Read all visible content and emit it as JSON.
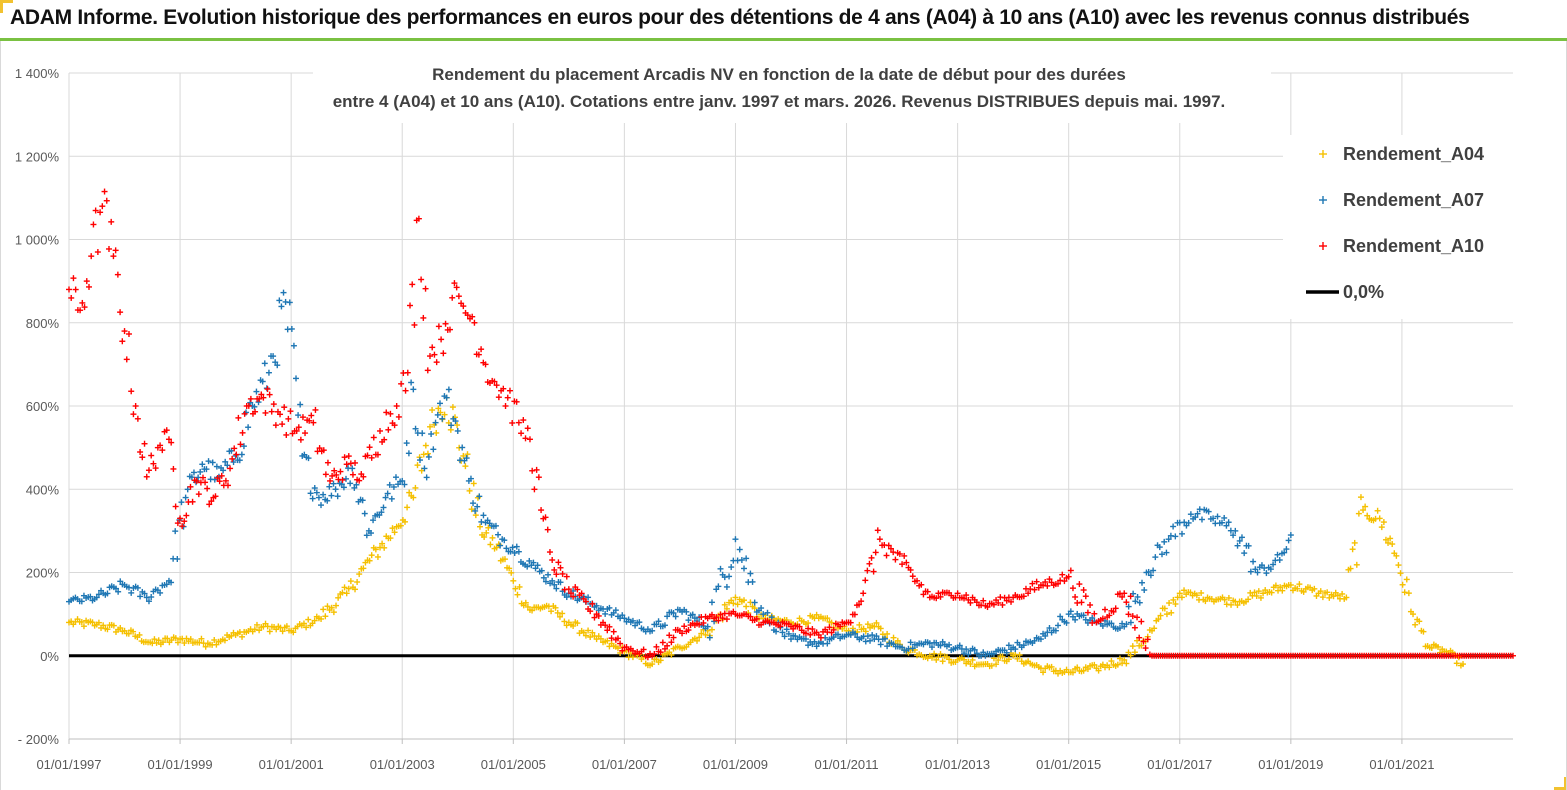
{
  "banner": {
    "title": "ADAM Informe. Evolution historique des performances en euros pour des détentions de 4 ans (A04) à 10 ans (A10) avec les revenus connus distribués"
  },
  "chart_data": {
    "type": "scatter",
    "title_line1": "Rendement du placement Arcadis NV en fonction de la date de début pour des durées",
    "title_line2": "entre 4 (A04) et 10 ans (A10).  Cotations entre janv. 1997 et mars. 2026. Revenus DISTRIBUES depuis mai. 1997.",
    "x_range": [
      1997.0,
      2023.0
    ],
    "ylim": [
      -200,
      1400
    ],
    "y_ticks": [
      -200,
      0,
      200,
      400,
      600,
      800,
      1000,
      1200,
      1400
    ],
    "y_tick_labels": [
      "- 200%",
      "0%",
      "200%",
      "400%",
      "600%",
      "800%",
      "1 000%",
      "1 200%",
      "1 400%"
    ],
    "x_ticks": [
      1997,
      1999,
      2001,
      2003,
      2005,
      2007,
      2009,
      2011,
      2013,
      2015,
      2017,
      2019,
      2021
    ],
    "x_tick_labels": [
      "01/01/1997",
      "01/01/1999",
      "01/01/2001",
      "01/01/2003",
      "01/01/2005",
      "01/01/2007",
      "01/01/2009",
      "01/01/2011",
      "01/01/2013",
      "01/01/2015",
      "01/01/2017",
      "01/01/2019",
      "01/01/2021"
    ],
    "grid": true,
    "legend_position": "top-right",
    "series": [
      {
        "name": "Rendement_A04",
        "color": "#f5c000",
        "marker": "plus",
        "x": [
          1997.0,
          1997.5,
          1998.0,
          1998.5,
          1999.0,
          1999.5,
          2000.0,
          2000.5,
          2001.0,
          2001.5,
          2002.0,
          2002.3,
          2002.6,
          2002.9,
          2003.2,
          2003.5,
          2003.8,
          2004.1,
          2004.4,
          2004.7,
          2005.0,
          2005.3,
          2005.6,
          2006.0,
          2006.5,
          2007.0,
          2007.5,
          2008.0,
          2008.5,
          2009.0,
          2009.5,
          2010.0,
          2010.5,
          2011.0,
          2011.5,
          2012.0,
          2012.5,
          2013.0,
          2013.5,
          2014.0,
          2014.5,
          2015.0,
          2015.5,
          2016.0,
          2016.5,
          2017.0,
          2017.5,
          2018.0,
          2018.5,
          2019.0,
          2019.5,
          2020.0,
          2020.3,
          2020.6,
          2020.9,
          2021.2,
          2021.5,
          2021.8,
          2022.1
        ],
        "y": [
          80,
          75,
          60,
          30,
          40,
          30,
          50,
          70,
          60,
          90,
          150,
          210,
          260,
          310,
          380,
          550,
          620,
          480,
          310,
          260,
          180,
          110,
          120,
          80,
          40,
          10,
          -20,
          20,
          60,
          140,
          90,
          80,
          90,
          60,
          70,
          20,
          0,
          -10,
          -20,
          0,
          -30,
          -40,
          -30,
          -10,
          60,
          150,
          140,
          130,
          150,
          170,
          150,
          140,
          350,
          330,
          240,
          100,
          20,
          10,
          -20
        ]
      },
      {
        "name": "Rendement_A07",
        "color": "#1f77b4",
        "marker": "plus",
        "x": [
          1997.0,
          1997.5,
          1998.0,
          1998.4,
          1998.8,
          1999.1,
          1999.4,
          1999.7,
          2000.0,
          2000.3,
          2000.6,
          2000.9,
          2001.2,
          2001.5,
          2001.8,
          2002.1,
          2002.4,
          2002.7,
          2003.0,
          2003.2,
          2003.4,
          2003.6,
          2003.8,
          2004.0,
          2004.2,
          2004.5,
          2004.8,
          2005.1,
          2005.4,
          2005.7,
          2006.0,
          2006.5,
          2007.0,
          2007.5,
          2008.0,
          2008.5,
          2009.0,
          2009.5,
          2010.0,
          2010.5,
          2011.0,
          2011.5,
          2012.0,
          2012.5,
          2013.0,
          2013.5,
          2014.0,
          2014.5,
          2015.0,
          2015.5,
          2016.0,
          2016.4,
          2016.8,
          2017.2,
          2017.6,
          2018.0,
          2018.4,
          2018.8,
          2019.0
        ],
        "y": [
          130,
          140,
          170,
          140,
          180,
          380,
          460,
          430,
          480,
          600,
          680,
          850,
          480,
          380,
          400,
          450,
          300,
          380,
          420,
          640,
          450,
          560,
          620,
          540,
          420,
          320,
          280,
          250,
          210,
          180,
          150,
          120,
          90,
          60,
          110,
          70,
          280,
          100,
          40,
          30,
          50,
          40,
          20,
          30,
          20,
          0,
          20,
          40,
          100,
          80,
          70,
          200,
          280,
          340,
          330,
          300,
          200,
          230,
          290
        ]
      },
      {
        "name": "Rendement_A10",
        "color": "#ff0000",
        "marker": "plus",
        "x": [
          1997.0,
          1997.2,
          1997.4,
          1997.6,
          1997.8,
          1998.0,
          1998.2,
          1998.4,
          1998.6,
          1998.8,
          1999.0,
          1999.3,
          1999.6,
          1999.9,
          2000.2,
          2000.5,
          2000.8,
          2001.1,
          2001.4,
          2001.7,
          2002.0,
          2002.3,
          2002.6,
          2002.9,
          2003.1,
          2003.3,
          2003.5,
          2003.7,
          2003.9,
          2004.1,
          2004.3,
          2004.5,
          2004.7,
          2004.9,
          2005.1,
          2005.3,
          2005.5,
          2005.7,
          2006.0,
          2006.5,
          2007.0,
          2007.5,
          2008.0,
          2008.5,
          2009.0,
          2009.5,
          2010.0,
          2010.5,
          2011.0,
          2011.3,
          2011.6,
          2012.0,
          2012.5,
          2013.0,
          2013.5,
          2014.0,
          2014.5,
          2015.0,
          2015.5,
          2016.0,
          2016.5,
          2017.0,
          2018.0,
          2019.0,
          2020.0,
          2021.0,
          2022.0,
          2023.0
        ],
        "y": [
          880,
          830,
          960,
          1080,
          960,
          780,
          600,
          430,
          500,
          520,
          330,
          420,
          380,
          450,
          600,
          620,
          580,
          540,
          560,
          420,
          460,
          430,
          540,
          600,
          680,
          1050,
          720,
          760,
          860,
          840,
          800,
          700,
          650,
          620,
          560,
          520,
          350,
          230,
          160,
          100,
          20,
          0,
          60,
          90,
          100,
          80,
          70,
          50,
          80,
          150,
          280,
          220,
          140,
          150,
          120,
          140,
          170,
          190,
          80,
          150,
          0,
          0,
          0,
          0,
          0,
          0,
          0,
          0
        ]
      },
      {
        "name": "0,0%",
        "color": "#000000",
        "marker": "line",
        "x": [
          1997.0,
          2023.0
        ],
        "y": [
          0,
          0
        ]
      }
    ]
  }
}
